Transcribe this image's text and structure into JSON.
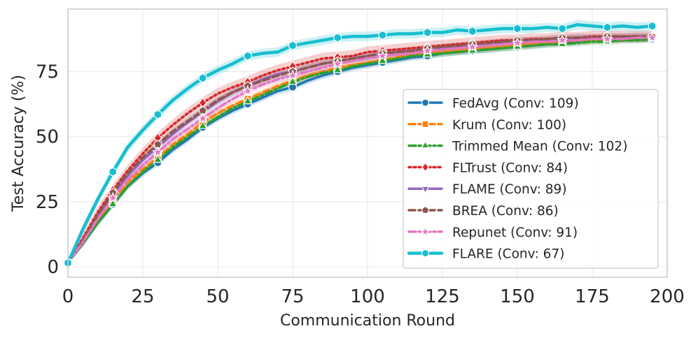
{
  "chart_data": {
    "type": "line",
    "title": "",
    "xlabel": "Communication Round",
    "ylabel": "Test Accuracy (%)",
    "xlim": [
      0,
      200
    ],
    "ylim": [
      -4,
      99
    ],
    "xticks": [
      0,
      25,
      50,
      75,
      100,
      125,
      150,
      175,
      200
    ],
    "yticks": [
      0,
      25,
      50,
      75
    ],
    "grid": true,
    "legend_position": "center-right",
    "x": [
      0,
      5,
      10,
      15,
      20,
      25,
      30,
      35,
      40,
      45,
      50,
      55,
      60,
      65,
      70,
      75,
      80,
      85,
      90,
      95,
      100,
      105,
      110,
      115,
      120,
      125,
      130,
      135,
      140,
      145,
      150,
      155,
      160,
      165,
      170,
      175,
      180,
      185,
      190,
      195
    ],
    "marker_every": 15,
    "series": [
      {
        "name": "FedAvg (Conv: 109)",
        "color": "#1f77b4",
        "dash": "",
        "width": 3.5,
        "marker": "circle",
        "band": 1.3,
        "values": [
          1.5,
          9,
          17,
          24,
          31,
          36,
          40,
          45,
          49,
          53.5,
          57,
          60,
          62.5,
          65,
          67.5,
          69,
          71.5,
          73.5,
          75,
          76.5,
          77.5,
          78.5,
          79.5,
          80.5,
          81,
          82,
          82.5,
          83,
          83.5,
          84,
          84.5,
          85,
          85.5,
          86,
          86.5,
          87,
          87,
          87.5,
          87.5,
          87.5
        ]
      },
      {
        "name": "Krum (Conv: 100)",
        "color": "#ff7f0e",
        "dash": "9 5",
        "width": 3.5,
        "marker": "square",
        "band": 1.3,
        "values": [
          1.5,
          9.5,
          18,
          25.5,
          32.5,
          37.5,
          42,
          47,
          51,
          55.5,
          59,
          62,
          64.5,
          67,
          69.5,
          71.5,
          73.5,
          75,
          76.5,
          77.5,
          78.5,
          79.5,
          80.5,
          81.5,
          82,
          82.5,
          83,
          83.5,
          84,
          84.5,
          85,
          85.5,
          86,
          86.5,
          87,
          87,
          87.5,
          87.5,
          88,
          88
        ]
      },
      {
        "name": "Trimmed Mean (Conv: 102)",
        "color": "#2ca02c",
        "dash": "10 4 3 4",
        "width": 3.5,
        "marker": "triangle",
        "band": 1.3,
        "values": [
          1.5,
          9,
          17,
          24,
          31,
          36.5,
          41,
          46,
          50,
          54,
          57.5,
          61,
          63.5,
          66,
          68.5,
          71,
          73,
          74.5,
          75.5,
          77,
          78,
          79,
          80,
          81,
          81.5,
          82,
          82.5,
          83,
          83.5,
          84,
          84.5,
          85,
          85.5,
          85.5,
          86,
          86.5,
          86.5,
          87,
          87,
          87.5
        ]
      },
      {
        "name": "FLTrust (Conv: 84)",
        "color": "#d62728",
        "dash": "3 4",
        "width": 3.5,
        "marker": "diamond",
        "band": 2.2,
        "values": [
          1.5,
          11,
          21,
          29.5,
          37,
          43.5,
          49.5,
          54.5,
          59,
          63,
          66.5,
          69,
          71,
          73.5,
          75.5,
          77,
          78.5,
          80,
          80.5,
          81,
          82.5,
          83,
          83.5,
          84,
          84.5,
          85,
          85.5,
          86,
          86.5,
          87,
          87,
          87.5,
          87.5,
          88,
          88,
          88.5,
          88.5,
          88.5,
          88.5,
          88.5
        ]
      },
      {
        "name": "FLAME (Conv: 89)",
        "color": "#9467bd",
        "dash": "",
        "width": 3.5,
        "marker": "triangle-down",
        "band": 1.5,
        "values": [
          1.5,
          10,
          19.5,
          28,
          35,
          41,
          46,
          51,
          55.5,
          59.5,
          63.5,
          67,
          69.5,
          72,
          74,
          75,
          76.5,
          78,
          79,
          80,
          81,
          82,
          82.5,
          83,
          83.5,
          84,
          84.5,
          85,
          85.5,
          86,
          86.5,
          87,
          87,
          87.5,
          88,
          88,
          88,
          88,
          88.5,
          88.5
        ]
      },
      {
        "name": "BREA (Conv: 86)",
        "color": "#8c564b",
        "dash": "9 5",
        "width": 3.5,
        "marker": "pentagon",
        "band": 1.3,
        "values": [
          1.5,
          10,
          20,
          28.5,
          36,
          42,
          47,
          52,
          56,
          60,
          64,
          67,
          69.5,
          71.5,
          73.5,
          75,
          76.5,
          78,
          79,
          80,
          81,
          82,
          82.5,
          83,
          84,
          84.5,
          85,
          85.5,
          86,
          86.5,
          87,
          87,
          87.5,
          88,
          88,
          88,
          88.5,
          88.5,
          88.5,
          88.5
        ]
      },
      {
        "name": "Repunet (Conv: 91)",
        "color": "#e377c2",
        "dash": "10 4 3 4",
        "width": 3.5,
        "marker": "star",
        "band": 1.3,
        "values": [
          1.5,
          9.5,
          18.5,
          26.5,
          33.5,
          39,
          44,
          49,
          53,
          57,
          61,
          64.5,
          67.5,
          70,
          72,
          73.5,
          75,
          76.5,
          78,
          79,
          80,
          81,
          81.5,
          82,
          83,
          83.5,
          84,
          84.5,
          85,
          85.5,
          86,
          86.5,
          86.5,
          87,
          87,
          87.5,
          87.5,
          87.5,
          88,
          88
        ]
      },
      {
        "name": "FLARE (Conv: 67)",
        "color": "#17becf",
        "dash": "",
        "width": 4.5,
        "marker": "hexagon",
        "band": 1.8,
        "values": [
          1.5,
          14.5,
          26,
          36.5,
          46,
          52.5,
          58.5,
          64,
          68.5,
          72.5,
          75.5,
          78,
          81,
          82,
          82.5,
          85,
          86,
          87,
          88,
          88.5,
          88.5,
          89,
          89.5,
          89.5,
          90,
          90,
          91,
          90.5,
          91,
          91.5,
          91.5,
          91.5,
          92,
          91.5,
          93,
          92.5,
          92,
          92.5,
          92,
          92.5
        ]
      }
    ]
  }
}
